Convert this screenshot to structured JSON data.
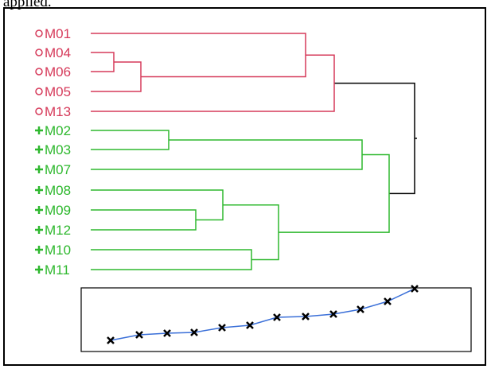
{
  "header_fragment": "applied.",
  "colors": {
    "cluster_a": "#d63a5a",
    "cluster_b": "#2eb82e",
    "root": "#000000",
    "trend_line": "#3a6fd8",
    "trend_marker": "#000000"
  },
  "clusters": [
    {
      "color": "cluster_a",
      "marker": "circle",
      "leaves": [
        "M01",
        "M04",
        "M06",
        "M05",
        "M13"
      ]
    },
    {
      "color": "cluster_b",
      "marker": "plus",
      "leaves": [
        "M02",
        "M03",
        "M07",
        "M08",
        "M09",
        "M12",
        "M10",
        "M11"
      ]
    }
  ],
  "trend_inset": {
    "point_count": 12,
    "marker": "x-icon"
  }
}
